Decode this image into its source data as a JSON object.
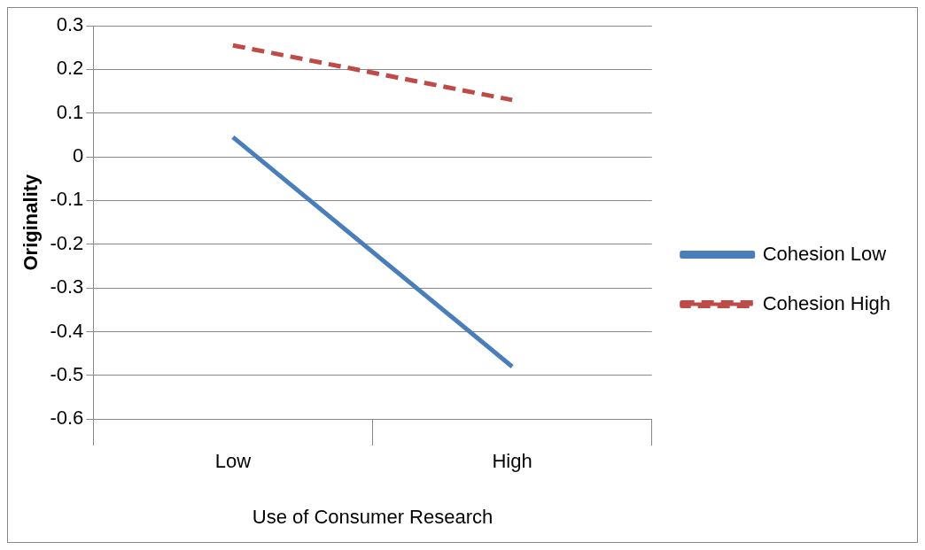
{
  "chart_data": {
    "type": "line",
    "xlabel": "Use of Consumer Research",
    "ylabel": "Originality",
    "categories": [
      "Low",
      "High"
    ],
    "series": [
      {
        "name": "Cohesion Low",
        "color": "#4a7ebb",
        "values": [
          0.045,
          -0.48
        ],
        "line_style": "solid"
      },
      {
        "name": "Cohesion High",
        "color": "#be4b48",
        "values": [
          0.255,
          0.13
        ],
        "line_style": "dashed"
      }
    ],
    "ylim": [
      -0.6,
      0.3
    ],
    "yticks": [
      -0.6,
      -0.5,
      -0.4,
      -0.3,
      -0.2,
      -0.1,
      0,
      0.1,
      0.2,
      0.3
    ],
    "grid": "y",
    "legend": "right",
    "marker": "none"
  }
}
